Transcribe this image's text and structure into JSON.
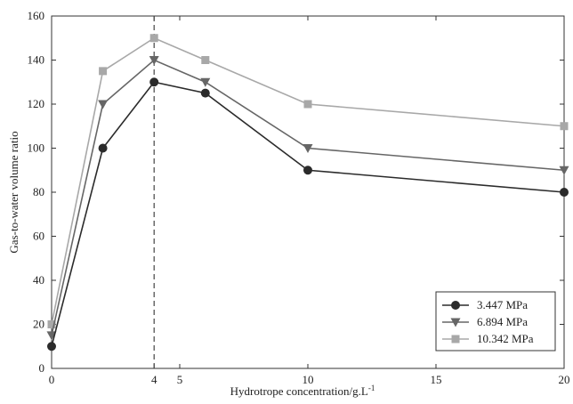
{
  "chart_data": {
    "type": "line",
    "title": "",
    "xlabel": "Hydrotrope concentration/g.L",
    "xlabel_superscript": "-1",
    "ylabel": "Gas-to-water volume ratio",
    "xlim": [
      0,
      20
    ],
    "ylim": [
      0,
      160
    ],
    "xticks": [
      0,
      4,
      5,
      10,
      15,
      20
    ],
    "yticks": [
      0,
      20,
      40,
      60,
      80,
      100,
      120,
      140,
      160
    ],
    "x": [
      0,
      2,
      4,
      6,
      10,
      20
    ],
    "series": [
      {
        "name": "3.447 MPa",
        "marker": "circle",
        "color": "#2b2b2b",
        "values": [
          10,
          100,
          130,
          125,
          90,
          80
        ]
      },
      {
        "name": "6.894 MPa",
        "marker": "triangle-down",
        "color": "#666666",
        "values": [
          15,
          120,
          140,
          130,
          100,
          90
        ]
      },
      {
        "name": "10.342 MPa",
        "marker": "square",
        "color": "#a8a8a8",
        "values": [
          20,
          135,
          150,
          140,
          120,
          110
        ]
      }
    ],
    "reference_line": {
      "x": 4,
      "style": "dashed"
    },
    "legend_position": "bottom-right",
    "grid": false
  }
}
